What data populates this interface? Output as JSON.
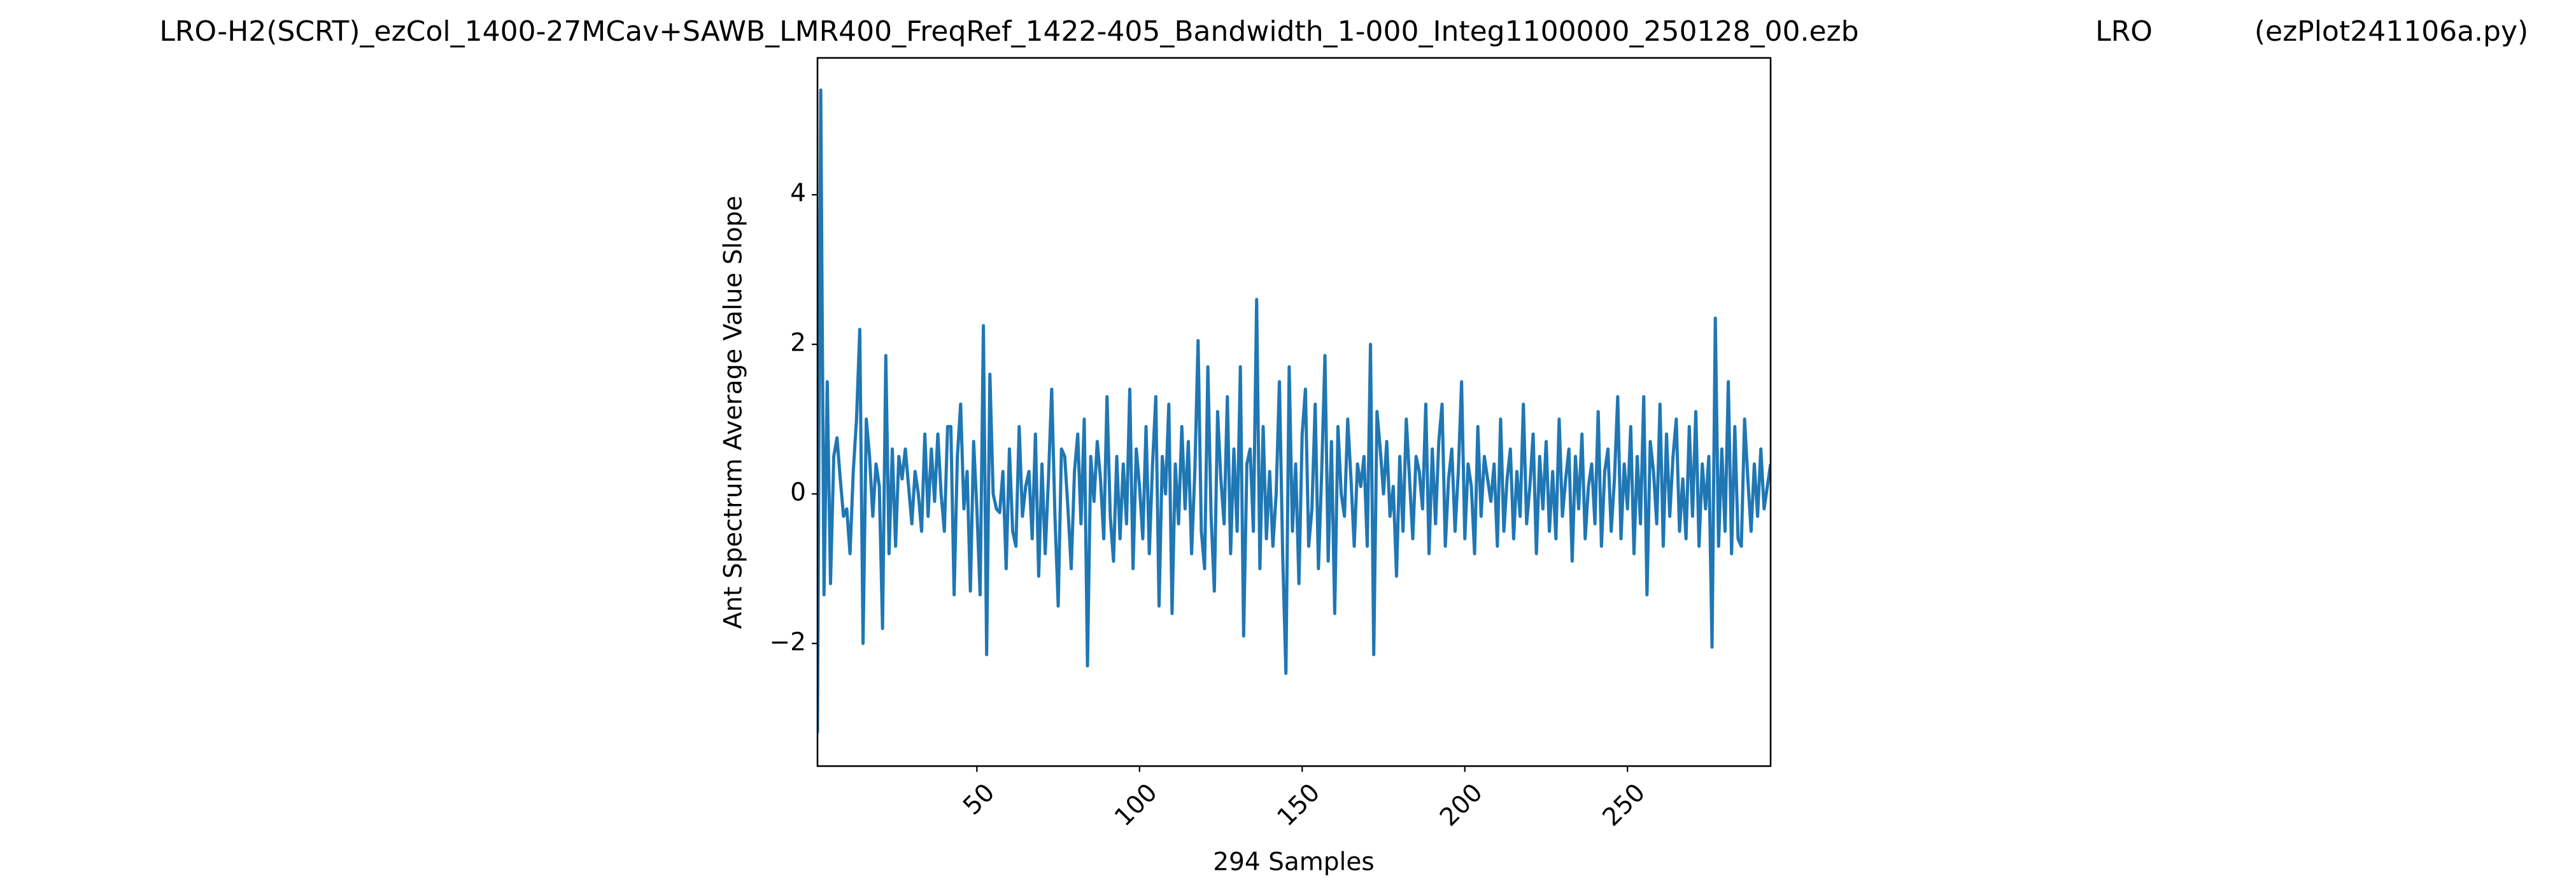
{
  "chart_data": {
    "type": "line",
    "title_parts": [
      "LRO-H2(SCRT)_ezCol_1400-27MCav+SAWB_LMR400_FreqRef_1422-405_Bandwidth_1-000_Integ1100000_250128_00.ezb",
      "LRO",
      "(ezPlot241106a.py)"
    ],
    "xlabel": "294 Samples",
    "ylabel": "Ant Spectrum Average Value Slope",
    "color": "#1f77b4",
    "xlim": [
      1,
      294
    ],
    "ylim": [
      -3.64,
      5.83
    ],
    "xticks": [
      50,
      100,
      150,
      200,
      250
    ],
    "yticks": [
      {
        "value": -2,
        "label": "−2"
      },
      0,
      2,
      4
    ],
    "x": [
      1,
      2,
      3,
      4,
      5,
      6,
      7,
      8,
      9,
      10,
      11,
      12,
      13,
      14,
      15,
      16,
      17,
      18,
      19,
      20,
      21,
      22,
      23,
      24,
      25,
      26,
      27,
      28,
      29,
      30,
      31,
      32,
      33,
      34,
      35,
      36,
      37,
      38,
      39,
      40,
      41,
      42,
      43,
      44,
      45,
      46,
      47,
      48,
      49,
      50,
      51,
      52,
      53,
      54,
      55,
      56,
      57,
      58,
      59,
      60,
      61,
      62,
      63,
      64,
      65,
      66,
      67,
      68,
      69,
      70,
      71,
      72,
      73,
      74,
      75,
      76,
      77,
      78,
      79,
      80,
      81,
      82,
      83,
      84,
      85,
      86,
      87,
      88,
      89,
      90,
      91,
      92,
      93,
      94,
      95,
      96,
      97,
      98,
      99,
      100,
      101,
      102,
      103,
      104,
      105,
      106,
      107,
      108,
      109,
      110,
      111,
      112,
      113,
      114,
      115,
      116,
      117,
      118,
      119,
      120,
      121,
      122,
      123,
      124,
      125,
      126,
      127,
      128,
      129,
      130,
      131,
      132,
      133,
      134,
      135,
      136,
      137,
      138,
      139,
      140,
      141,
      142,
      143,
      144,
      145,
      146,
      147,
      148,
      149,
      150,
      151,
      152,
      153,
      154,
      155,
      156,
      157,
      158,
      159,
      160,
      161,
      162,
      163,
      164,
      165,
      166,
      167,
      168,
      169,
      170,
      171,
      172,
      173,
      174,
      175,
      176,
      177,
      178,
      179,
      180,
      181,
      182,
      183,
      184,
      185,
      186,
      187,
      188,
      189,
      190,
      191,
      192,
      193,
      194,
      195,
      196,
      197,
      198,
      199,
      200,
      201,
      202,
      203,
      204,
      205,
      206,
      207,
      208,
      209,
      210,
      211,
      212,
      213,
      214,
      215,
      216,
      217,
      218,
      219,
      220,
      221,
      222,
      223,
      224,
      225,
      226,
      227,
      228,
      229,
      230,
      231,
      232,
      233,
      234,
      235,
      236,
      237,
      238,
      239,
      240,
      241,
      242,
      243,
      244,
      245,
      246,
      247,
      248,
      249,
      250,
      251,
      252,
      253,
      254,
      255,
      256,
      257,
      258,
      259,
      260,
      261,
      262,
      263,
      264,
      265,
      266,
      267,
      268,
      269,
      270,
      271,
      272,
      273,
      274,
      275,
      276,
      277,
      278,
      279,
      280,
      281,
      282,
      283,
      284,
      285,
      286,
      287,
      288,
      289,
      290,
      291,
      292,
      293,
      294
    ],
    "values": [
      -3.2,
      5.4,
      -1.35,
      1.5,
      -1.2,
      0.5,
      0.75,
      0.2,
      -0.3,
      -0.2,
      -0.8,
      0.3,
      1.0,
      2.2,
      -2.0,
      1.0,
      0.5,
      -0.3,
      0.4,
      0.1,
      -1.8,
      1.85,
      -0.8,
      0.6,
      -0.7,
      0.5,
      0.2,
      0.6,
      0.1,
      -0.4,
      0.3,
      0.0,
      -0.5,
      0.8,
      -0.3,
      0.6,
      -0.1,
      0.8,
      0.0,
      -0.5,
      0.9,
      0.9,
      -1.35,
      0.5,
      1.2,
      -0.2,
      0.3,
      -1.3,
      0.7,
      -0.2,
      -1.35,
      2.25,
      -2.15,
      1.6,
      0.0,
      -0.2,
      -0.25,
      0.3,
      -1.0,
      0.6,
      -0.5,
      -0.7,
      0.9,
      -0.3,
      0.1,
      0.3,
      -0.6,
      0.8,
      -1.1,
      0.4,
      -0.8,
      0.2,
      1.4,
      -0.3,
      -1.5,
      0.6,
      0.5,
      -0.2,
      -1.0,
      0.3,
      0.8,
      -0.4,
      1.0,
      -2.3,
      0.5,
      -0.1,
      0.7,
      0.2,
      -0.6,
      1.3,
      -0.3,
      -0.9,
      0.5,
      -0.6,
      0.4,
      -0.4,
      1.4,
      -1.0,
      0.6,
      0.1,
      -0.6,
      0.9,
      -0.8,
      0.4,
      1.3,
      -1.5,
      0.5,
      0.0,
      1.2,
      -1.6,
      0.4,
      -0.4,
      0.9,
      -0.2,
      0.7,
      -0.8,
      0.3,
      2.05,
      -0.5,
      -1.0,
      1.7,
      -0.3,
      -1.3,
      1.1,
      0.2,
      -0.4,
      1.3,
      -0.8,
      0.6,
      -0.5,
      1.7,
      -1.9,
      0.4,
      0.6,
      -0.5,
      2.6,
      -1.0,
      0.9,
      -0.6,
      0.3,
      -0.7,
      0.0,
      1.5,
      -0.8,
      -2.4,
      1.7,
      -0.5,
      0.4,
      -1.2,
      0.8,
      1.4,
      -0.7,
      -0.2,
      1.2,
      -1.0,
      0.3,
      1.85,
      -0.9,
      0.7,
      -1.6,
      0.9,
      0.0,
      -0.3,
      1.0,
      0.2,
      -0.7,
      0.4,
      0.1,
      0.5,
      -0.7,
      2.0,
      -2.15,
      1.1,
      0.6,
      0.0,
      0.7,
      -0.3,
      0.1,
      -1.1,
      0.5,
      -0.5,
      1.0,
      0.2,
      -0.6,
      0.5,
      0.3,
      -0.2,
      1.2,
      -0.8,
      0.6,
      -0.4,
      0.7,
      1.2,
      -0.7,
      0.2,
      0.6,
      -0.5,
      0.3,
      1.5,
      -0.6,
      0.4,
      0.1,
      -0.8,
      0.9,
      -0.3,
      0.5,
      0.2,
      -0.1,
      0.4,
      -0.7,
      1.0,
      -0.5,
      0.2,
      0.6,
      -0.6,
      0.3,
      -0.3,
      1.2,
      -0.4,
      0.1,
      0.8,
      -0.8,
      0.5,
      -0.2,
      0.7,
      -0.5,
      0.3,
      -0.6,
      1.0,
      -0.3,
      0.2,
      0.6,
      -0.9,
      0.5,
      -0.2,
      0.8,
      -0.6,
      0.1,
      0.4,
      -0.4,
      1.1,
      -0.7,
      0.3,
      0.6,
      -0.5,
      0.2,
      1.3,
      -0.6,
      0.4,
      -0.2,
      0.9,
      -0.8,
      0.5,
      -0.4,
      1.3,
      -1.35,
      0.7,
      0.3,
      -0.4,
      1.2,
      -0.7,
      0.8,
      -0.3,
      0.5,
      1.0,
      -0.5,
      0.2,
      -0.6,
      0.9,
      -0.3,
      1.1,
      -0.7,
      0.4,
      -0.2,
      0.5,
      -2.05,
      2.35,
      -0.7,
      0.6,
      -0.5,
      1.5,
      -0.8,
      0.9,
      -0.6,
      -0.7,
      1.0,
      0.2,
      -0.5,
      0.4,
      -0.3,
      0.6,
      -0.2,
      0.1,
      0.4
    ]
  }
}
